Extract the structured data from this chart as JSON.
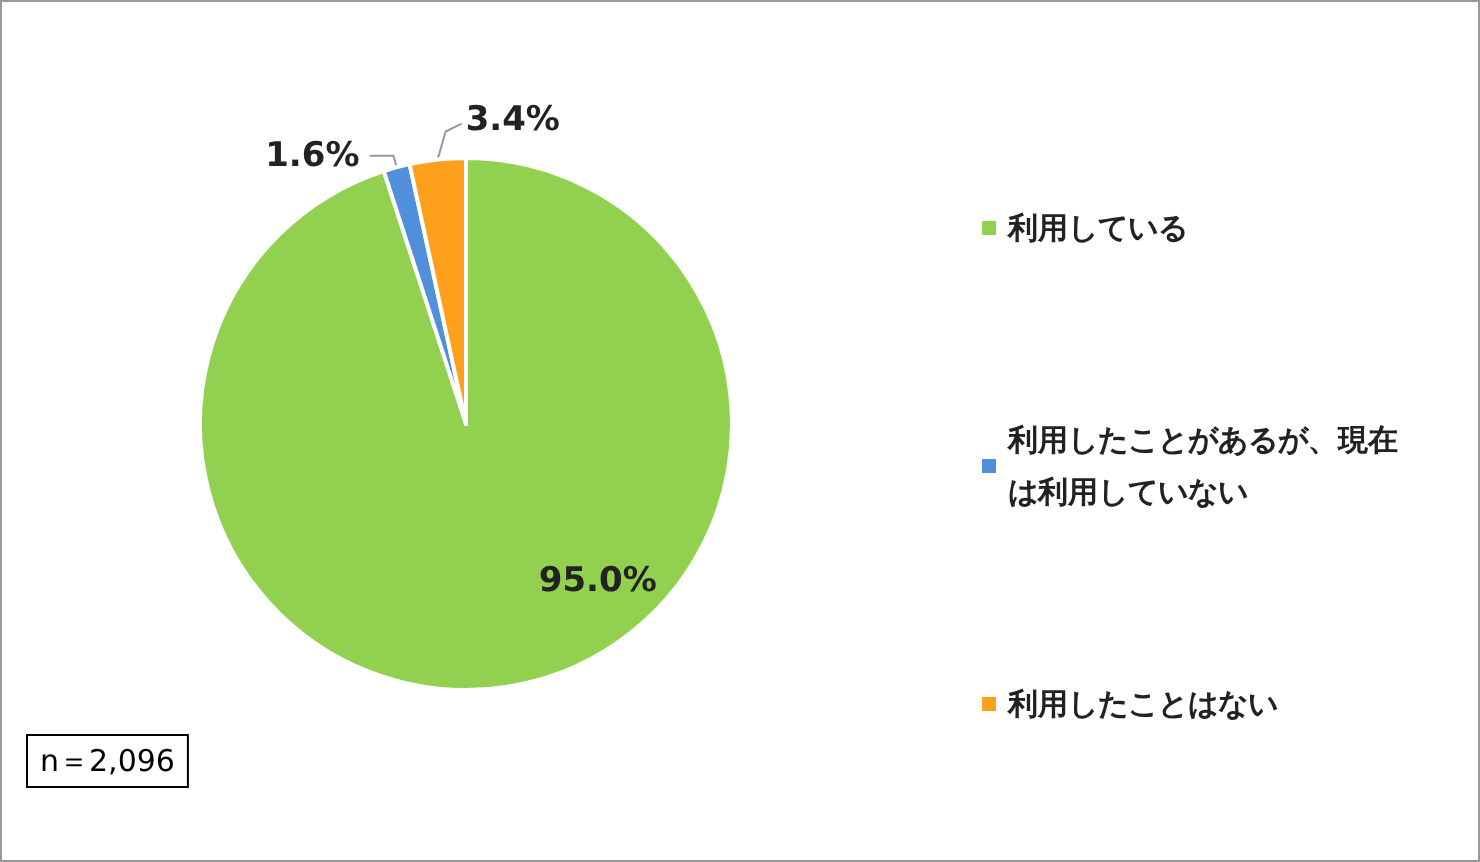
{
  "chart_data": {
    "type": "pie",
    "categories": [
      "利用している",
      "利用したことがあるが、現在は利用していない",
      "利用したことはない"
    ],
    "values": [
      95.0,
      1.6,
      3.4
    ],
    "colors": [
      "#92d050",
      "#4f8fdc",
      "#ffa01c"
    ],
    "value_labels": [
      "95.0%",
      "1.6%",
      "3.4%"
    ],
    "legend": "right",
    "annotations": [
      "n＝2,096"
    ]
  }
}
